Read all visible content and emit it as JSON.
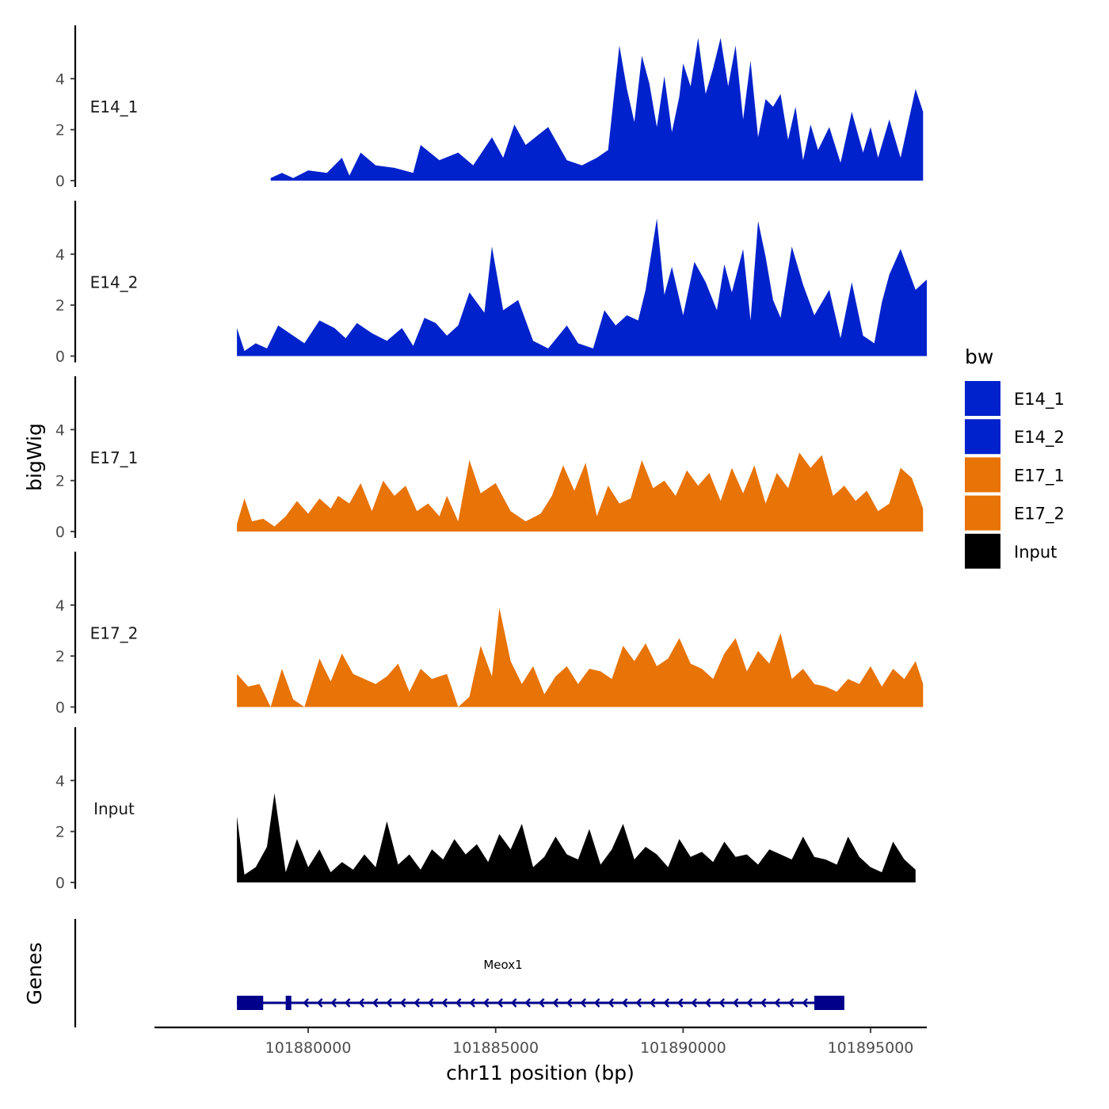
{
  "chart_data": {
    "type": "area",
    "ylabel": "bigWig",
    "xlabel": "chr11 position (bp)",
    "xlim": [
      101875900,
      101896500
    ],
    "ylim": [
      0,
      6
    ],
    "y_ticks": [
      0,
      2,
      4
    ],
    "x_ticks": [
      101880000,
      101885000,
      101890000,
      101895000
    ],
    "x_tick_labels": [
      "101880000",
      "101885000",
      "101890000",
      "101895000"
    ],
    "legend": {
      "title": "bw",
      "position": "right",
      "entries": [
        {
          "label": "E14_1",
          "color": "#0022cc"
        },
        {
          "label": "E14_2",
          "color": "#0022cc"
        },
        {
          "label": "E17_1",
          "color": "#e87306"
        },
        {
          "label": "E17_2",
          "color": "#e87306"
        },
        {
          "label": "Input",
          "color": "#000000"
        }
      ]
    },
    "series": [
      {
        "name": "E14_1",
        "color": "#0022cc",
        "x": [
          101879000,
          101879300,
          101879600,
          101880000,
          101880500,
          101880900,
          101881100,
          101881400,
          101881800,
          101882300,
          101882800,
          101883000,
          101883500,
          101884000,
          101884400,
          101884900,
          101885200,
          101885500,
          101885800,
          101886400,
          101886900,
          101887300,
          101887700,
          101888000,
          101888300,
          101888500,
          101888700,
          101888900,
          101889100,
          101889300,
          101889500,
          101889700,
          101889900,
          101890000,
          101890200,
          101890400,
          101890600,
          101890800,
          101891000,
          101891200,
          101891400,
          101891600,
          101891800,
          101892000,
          101892200,
          101892400,
          101892600,
          101892800,
          101893000,
          101893200,
          101893400,
          101893600,
          101893900,
          101894200,
          101894500,
          101894800,
          101895000,
          101895200,
          101895500,
          101895800,
          101896200,
          101896400
        ],
        "values": [
          0.1,
          0.3,
          0.1,
          0.4,
          0.3,
          0.9,
          0.2,
          1.1,
          0.6,
          0.5,
          0.3,
          1.4,
          0.8,
          1.1,
          0.6,
          1.7,
          0.9,
          2.2,
          1.4,
          2.1,
          0.8,
          0.6,
          0.9,
          1.2,
          5.3,
          3.6,
          2.3,
          4.9,
          3.8,
          2.1,
          4.1,
          1.9,
          3.3,
          4.6,
          3.7,
          5.6,
          3.4,
          4.4,
          5.6,
          3.7,
          5.3,
          2.4,
          4.7,
          1.7,
          3.2,
          2.9,
          3.4,
          1.6,
          2.9,
          0.8,
          2.2,
          1.2,
          2.1,
          0.7,
          2.7,
          1.1,
          2.1,
          0.9,
          2.4,
          0.9,
          3.6,
          2.7
        ]
      },
      {
        "name": "E14_2",
        "color": "#0022cc",
        "x": [
          101878100,
          101878300,
          101878600,
          101878900,
          101879200,
          101879600,
          101879900,
          101880300,
          101880700,
          101881000,
          101881300,
          101881700,
          101882100,
          101882500,
          101882800,
          101883100,
          101883400,
          101883700,
          101884000,
          101884300,
          101884700,
          101884900,
          101885200,
          101885600,
          101886000,
          101886400,
          101886900,
          101887200,
          101887600,
          101887900,
          101888200,
          101888500,
          101888800,
          101889000,
          101889300,
          101889500,
          101889700,
          101890000,
          101890300,
          101890600,
          101890900,
          101891100,
          101891300,
          101891600,
          101891800,
          101892000,
          101892200,
          101892400,
          101892600,
          101892900,
          101893200,
          101893500,
          101893900,
          101894200,
          101894500,
          101894800,
          101895100,
          101895300,
          101895500,
          101895800,
          101896200,
          101896500
        ],
        "values": [
          1.1,
          0.2,
          0.5,
          0.3,
          1.2,
          0.8,
          0.5,
          1.4,
          1.1,
          0.7,
          1.3,
          0.9,
          0.6,
          1.1,
          0.4,
          1.5,
          1.3,
          0.8,
          1.2,
          2.5,
          1.7,
          4.3,
          1.8,
          2.2,
          0.6,
          0.3,
          1.2,
          0.5,
          0.3,
          1.8,
          1.2,
          1.6,
          1.4,
          2.6,
          5.4,
          2.4,
          3.5,
          1.6,
          3.7,
          2.9,
          1.8,
          3.6,
          2.5,
          4.2,
          1.4,
          5.3,
          3.9,
          2.2,
          1.5,
          4.3,
          2.8,
          1.6,
          2.6,
          0.7,
          2.9,
          0.8,
          0.5,
          2.1,
          3.2,
          4.2,
          2.6,
          3.0
        ]
      },
      {
        "name": "E17_1",
        "color": "#e87306",
        "x": [
          101878100,
          101878300,
          101878500,
          101878800,
          101879100,
          101879400,
          101879700,
          101880000,
          101880300,
          101880600,
          101880800,
          101881100,
          101881400,
          101881700,
          101882000,
          101882300,
          101882600,
          101882900,
          101883200,
          101883500,
          101883700,
          101884000,
          101884300,
          101884600,
          101885000,
          101885400,
          101885800,
          101886200,
          101886500,
          101886800,
          101887100,
          101887400,
          101887700,
          101888000,
          101888300,
          101888600,
          101888900,
          101889200,
          101889500,
          101889800,
          101890100,
          101890400,
          101890700,
          101891000,
          101891300,
          101891600,
          101891900,
          101892200,
          101892500,
          101892800,
          101893100,
          101893400,
          101893700,
          101894000,
          101894300,
          101894600,
          101894900,
          101895200,
          101895500,
          101895800,
          101896100,
          101896400
        ],
        "values": [
          0.3,
          1.3,
          0.4,
          0.5,
          0.2,
          0.6,
          1.2,
          0.7,
          1.3,
          0.9,
          1.4,
          1.1,
          1.9,
          0.8,
          2.0,
          1.4,
          1.8,
          0.8,
          1.1,
          0.6,
          1.4,
          0.4,
          2.8,
          1.5,
          1.9,
          0.8,
          0.4,
          0.7,
          1.4,
          2.6,
          1.6,
          2.7,
          0.6,
          1.8,
          1.1,
          1.3,
          2.8,
          1.7,
          2.0,
          1.4,
          2.4,
          1.8,
          2.3,
          1.2,
          2.5,
          1.5,
          2.6,
          1.1,
          2.3,
          1.7,
          3.1,
          2.5,
          3.0,
          1.4,
          1.8,
          1.2,
          1.6,
          0.8,
          1.1,
          2.5,
          2.1,
          0.9
        ]
      },
      {
        "name": "E17_2",
        "color": "#e87306",
        "x": [
          101878100,
          101878400,
          101878700,
          101879000,
          101879300,
          101879600,
          101879900,
          101880300,
          101880600,
          101880900,
          101881200,
          101881500,
          101881800,
          101882100,
          101882400,
          101882700,
          101883000,
          101883300,
          101883700,
          101884000,
          101884300,
          101884600,
          101884900,
          101885100,
          101885400,
          101885700,
          101886000,
          101886300,
          101886600,
          101886900,
          101887200,
          101887500,
          101887800,
          101888100,
          101888400,
          101888700,
          101889000,
          101889300,
          101889600,
          101889900,
          101890200,
          101890500,
          101890800,
          101891100,
          101891400,
          101891700,
          101892000,
          101892300,
          101892600,
          101892900,
          101893200,
          101893500,
          101893800,
          101894100,
          101894400,
          101894700,
          101895000,
          101895300,
          101895600,
          101895900,
          101896200,
          101896400
        ],
        "values": [
          1.3,
          0.8,
          0.9,
          0.0,
          1.5,
          0.3,
          0.0,
          1.9,
          1.0,
          2.1,
          1.3,
          1.1,
          0.9,
          1.2,
          1.7,
          0.6,
          1.5,
          1.1,
          1.3,
          0.0,
          0.4,
          2.4,
          1.2,
          3.9,
          1.8,
          0.9,
          1.6,
          0.5,
          1.2,
          1.6,
          0.9,
          1.5,
          1.4,
          1.1,
          2.4,
          1.8,
          2.5,
          1.6,
          1.9,
          2.7,
          1.7,
          1.5,
          1.1,
          2.1,
          2.7,
          1.4,
          2.2,
          1.7,
          2.9,
          1.1,
          1.5,
          0.9,
          0.8,
          0.6,
          1.1,
          0.9,
          1.6,
          0.8,
          1.5,
          1.1,
          1.8,
          0.9
        ]
      },
      {
        "name": "Input",
        "color": "#000000",
        "x": [
          101878100,
          101878300,
          101878600,
          101878900,
          101879100,
          101879400,
          101879700,
          101880000,
          101880300,
          101880600,
          101880900,
          101881200,
          101881500,
          101881800,
          101882100,
          101882400,
          101882700,
          101883000,
          101883300,
          101883600,
          101883900,
          101884200,
          101884500,
          101884800,
          101885100,
          101885400,
          101885700,
          101886000,
          101886300,
          101886600,
          101886900,
          101887200,
          101887500,
          101887800,
          101888100,
          101888400,
          101888700,
          101889000,
          101889300,
          101889600,
          101889900,
          101890200,
          101890500,
          101890800,
          101891100,
          101891400,
          101891700,
          101892000,
          101892300,
          101892600,
          101892900,
          101893200,
          101893500,
          101893800,
          101894100,
          101894400,
          101894700,
          101895000,
          101895300,
          101895600,
          101895900,
          101896200
        ],
        "values": [
          2.6,
          0.3,
          0.6,
          1.4,
          3.5,
          0.4,
          1.7,
          0.6,
          1.3,
          0.4,
          0.8,
          0.5,
          1.1,
          0.6,
          2.4,
          0.7,
          1.1,
          0.5,
          1.3,
          0.9,
          1.7,
          1.1,
          1.5,
          0.8,
          1.9,
          1.3,
          2.3,
          0.6,
          1.0,
          1.8,
          1.1,
          0.9,
          2.1,
          0.7,
          1.3,
          2.3,
          0.9,
          1.4,
          1.1,
          0.6,
          1.7,
          1.0,
          1.2,
          0.8,
          1.6,
          1.0,
          1.1,
          0.7,
          1.3,
          1.1,
          0.9,
          1.8,
          1.0,
          0.9,
          0.7,
          1.8,
          1.0,
          0.6,
          0.4,
          1.6,
          0.9,
          0.5
        ]
      }
    ],
    "genes_track": {
      "title": "Genes",
      "genes": [
        {
          "name": "Meox1",
          "strand": "-",
          "start": 101878100,
          "end": 101894300,
          "exons": [
            [
              101878100,
              101878800
            ],
            [
              101879400,
              101879550
            ],
            [
              101893500,
              101894300
            ]
          ]
        }
      ]
    }
  }
}
